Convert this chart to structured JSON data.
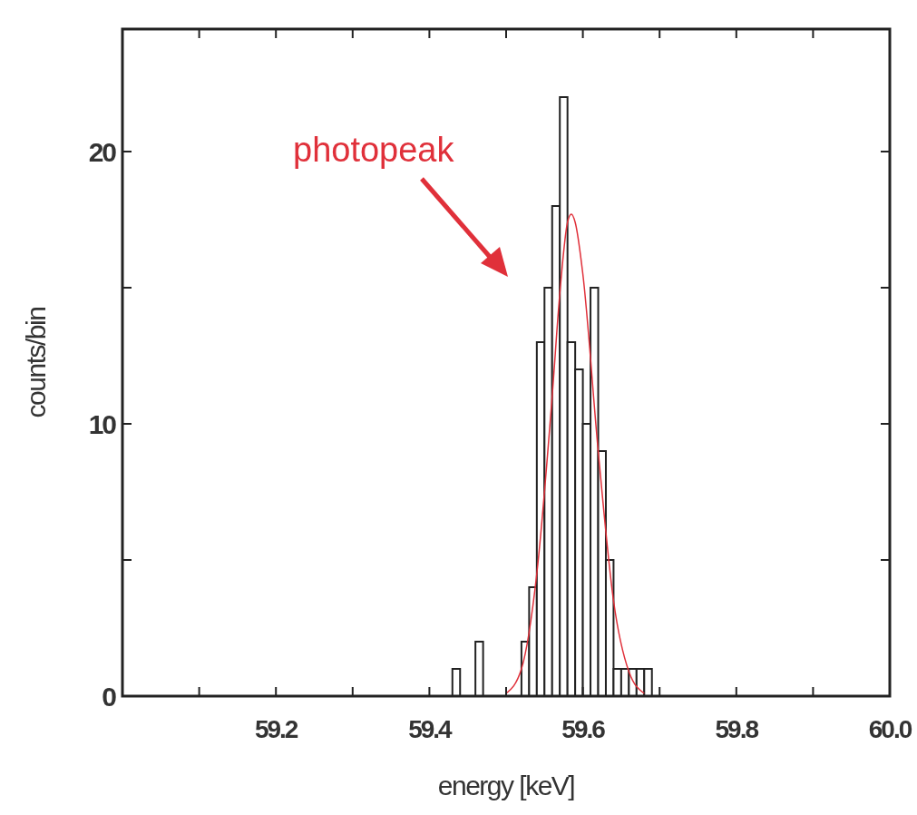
{
  "chart_data": {
    "type": "histogram",
    "xlabel": "energy [keV]",
    "ylabel": "counts/bin",
    "annotations": [
      "photopeak"
    ],
    "xlim": [
      59.0,
      60.0
    ],
    "ylim": [
      0,
      24.5
    ],
    "xticks": [
      {
        "value": 59.1,
        "label": null
      },
      59.2,
      {
        "value": 59.3,
        "label": null
      },
      59.4,
      {
        "value": 59.5,
        "label": null
      },
      59.6,
      {
        "value": 59.7,
        "label": null
      },
      59.8,
      {
        "value": 59.9,
        "label": null
      },
      {
        "value": 60.0,
        "label": "60.0"
      }
    ],
    "yticks": [
      0,
      {
        "value": 5,
        "label": null
      },
      10,
      {
        "value": 15,
        "label": null
      },
      20
    ],
    "grid": false,
    "series": [
      {
        "color": "#ffffff",
        "bins": [
          59.43,
          59.44,
          59.45,
          59.46,
          59.47,
          59.48,
          59.49,
          59.5,
          59.51,
          59.52,
          59.53,
          59.54,
          59.55,
          59.56,
          59.57,
          59.58,
          59.59,
          59.6,
          59.61,
          59.62,
          59.63,
          59.64,
          59.65,
          59.66,
          59.67,
          59.68,
          59.69
        ],
        "values": [
          1,
          0,
          0,
          2,
          0,
          0,
          0,
          0,
          0,
          2,
          4,
          13,
          15,
          18,
          22,
          13,
          12,
          10,
          15,
          9,
          5,
          1,
          1,
          1,
          1,
          1
        ]
      },
      {
        "type": "line",
        "color": "#e0303a",
        "x": [
          59.5,
          59.52,
          59.54,
          59.56,
          59.57,
          59.58,
          59.585,
          59.59,
          59.6,
          59.62,
          59.64,
          59.66,
          59.68
        ],
        "values": [
          0.1,
          1,
          4.5,
          11,
          14.8,
          17.4,
          17.7,
          17.4,
          15.5,
          9,
          3.5,
          0.9,
          0.1
        ]
      }
    ]
  }
}
